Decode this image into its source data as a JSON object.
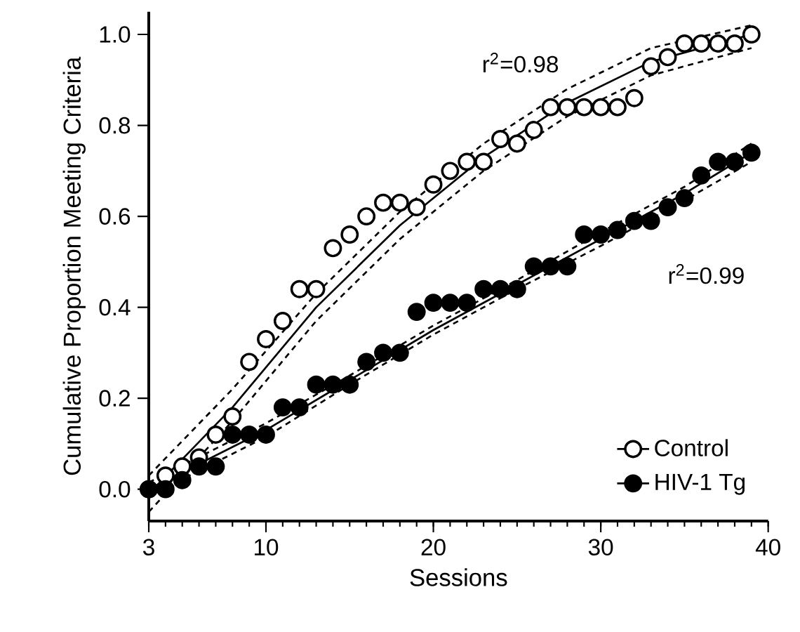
{
  "chart_data": {
    "type": "scatter",
    "xlabel": "Sessions",
    "ylabel": "Cumulative Proportion Meeting Criteria",
    "xlim": [
      3,
      40
    ],
    "xticks": [
      3,
      10,
      20,
      30,
      40
    ],
    "ylim": [
      -0.07,
      1.05
    ],
    "yticks": [
      {
        "value": 0,
        "label": "0.0"
      },
      {
        "value": 0.2,
        "label": "0.2"
      },
      {
        "value": 0.4,
        "label": "0.4"
      },
      {
        "value": 0.6,
        "label": "0.6"
      },
      {
        "value": 0.8,
        "label": "0.8"
      },
      {
        "value": 1,
        "label": "1.0"
      }
    ],
    "legend": "bottom right",
    "grid": false,
    "annotations": [
      "r$^{2}$=0.98",
      "r$^{2}$=0.99"
    ],
    "series": [
      {
        "name": "Control",
        "color": "#ffffff",
        "marker": "circle",
        "x": [
          3,
          4,
          5,
          6,
          7,
          8,
          9,
          10,
          11,
          12,
          13,
          14,
          15,
          16,
          17,
          18,
          19,
          20,
          21,
          22,
          23,
          24,
          25,
          26,
          27,
          28,
          29,
          30,
          31,
          32,
          33,
          34,
          35,
          36,
          37,
          38,
          39
        ],
        "values": [
          0.0,
          0.03,
          0.05,
          0.07,
          0.12,
          0.16,
          0.28,
          0.33,
          0.37,
          0.44,
          0.44,
          0.53,
          0.56,
          0.6,
          0.63,
          0.63,
          0.62,
          0.67,
          0.7,
          0.72,
          0.72,
          0.77,
          0.76,
          0.79,
          0.84,
          0.84,
          0.84,
          0.84,
          0.84,
          0.86,
          0.93,
          0.95,
          0.98,
          0.98,
          0.98,
          0.98,
          1.0
        ]
      },
      {
        "name": "HIV-1 Tg",
        "color": "#000000",
        "marker": "circle",
        "x": [
          3,
          4,
          5,
          6,
          7,
          8,
          9,
          10,
          11,
          12,
          13,
          14,
          15,
          16,
          17,
          18,
          19,
          20,
          21,
          22,
          23,
          24,
          25,
          26,
          27,
          28,
          29,
          30,
          31,
          32,
          33,
          34,
          35,
          36,
          37,
          38,
          39
        ],
        "values": [
          0.0,
          0.0,
          0.02,
          0.05,
          0.05,
          0.12,
          0.12,
          0.12,
          0.18,
          0.18,
          0.23,
          0.23,
          0.23,
          0.28,
          0.3,
          0.3,
          0.39,
          0.41,
          0.41,
          0.41,
          0.44,
          0.44,
          0.44,
          0.49,
          0.49,
          0.49,
          0.56,
          0.56,
          0.57,
          0.59,
          0.59,
          0.62,
          0.64,
          0.69,
          0.72,
          0.72,
          0.74
        ]
      },
      {
        "type": "line",
        "color": "#000000",
        "line_style": "solid",
        "marker": "none",
        "x": [
          3,
          8,
          13,
          18,
          23,
          28,
          33,
          39
        ],
        "values": [
          -0.01,
          0.18,
          0.4,
          0.58,
          0.73,
          0.85,
          0.94,
          1.0
        ]
      },
      {
        "type": "line",
        "color": "#000000",
        "line_style": "dashed",
        "marker": "none",
        "x": [
          3,
          8,
          13,
          18,
          23,
          28,
          33,
          39
        ],
        "values": [
          0.03,
          0.22,
          0.43,
          0.61,
          0.76,
          0.88,
          0.97,
          1.02
        ]
      },
      {
        "type": "line",
        "color": "#000000",
        "line_style": "dashed",
        "marker": "none",
        "x": [
          3,
          8,
          13,
          18,
          23,
          28,
          33,
          39
        ],
        "values": [
          -0.05,
          0.15,
          0.37,
          0.55,
          0.7,
          0.82,
          0.91,
          0.97
        ]
      },
      {
        "type": "line",
        "color": "#000000",
        "line_style": "solid",
        "marker": "none",
        "x": [
          3,
          10,
          15,
          20,
          25,
          30,
          35,
          39
        ],
        "values": [
          0.0,
          0.13,
          0.24,
          0.35,
          0.45,
          0.55,
          0.65,
          0.74
        ]
      },
      {
        "type": "line",
        "color": "#000000",
        "line_style": "dashed",
        "marker": "none",
        "x": [
          3,
          10,
          15,
          20,
          25,
          30,
          35,
          39
        ],
        "values": [
          0.015,
          0.145,
          0.25,
          0.36,
          0.46,
          0.565,
          0.665,
          0.76
        ]
      },
      {
        "type": "line",
        "color": "#000000",
        "line_style": "dashed",
        "marker": "none",
        "x": [
          3,
          10,
          15,
          20,
          25,
          30,
          35,
          39
        ],
        "values": [
          -0.015,
          0.115,
          0.23,
          0.34,
          0.44,
          0.535,
          0.635,
          0.72
        ]
      }
    ]
  }
}
